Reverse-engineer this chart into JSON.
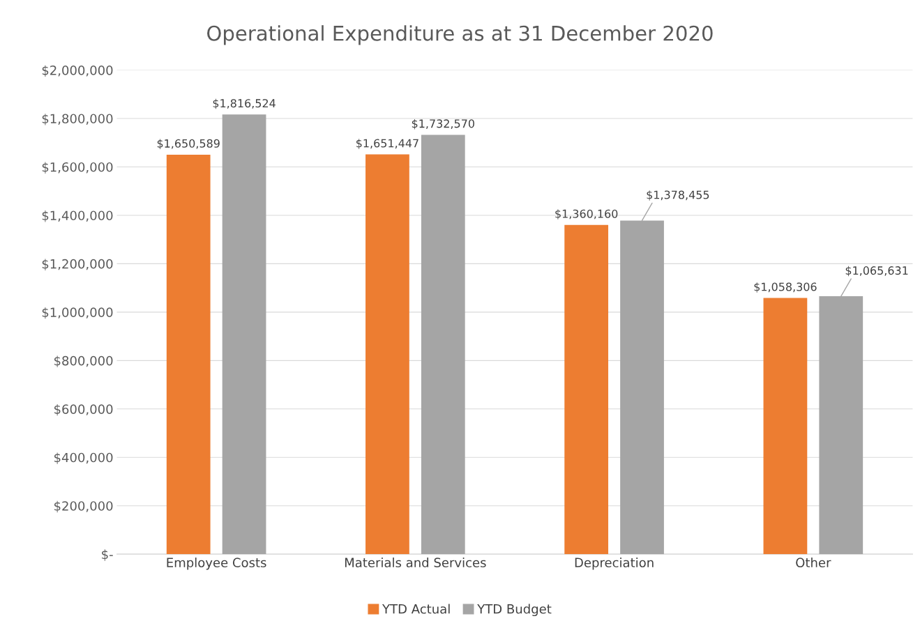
{
  "chart_data": {
    "type": "bar",
    "title": "Operational Expenditure as at 31 December 2020",
    "categories": [
      "Employee Costs",
      "Materials and Services",
      "Depreciation",
      "Other"
    ],
    "series": [
      {
        "name": "YTD Actual",
        "color": "#ed7d31",
        "values": [
          1650589,
          1651447,
          1360160,
          1058306
        ],
        "value_labels": [
          "$1,650,589",
          "$1,651,447",
          "$1,360,160",
          "$1,058,306"
        ]
      },
      {
        "name": "YTD Budget",
        "color": "#a5a5a5",
        "values": [
          1816524,
          1732570,
          1378455,
          1065631
        ],
        "value_labels": [
          "$1,816,524",
          "$1,732,570",
          "$1,378,455",
          "$1,065,631"
        ]
      }
    ],
    "ylim": [
      0,
      2000000
    ],
    "yticks": [
      {
        "value": 0,
        "label": "$-"
      },
      {
        "value": 200000,
        "label": "$200,000"
      },
      {
        "value": 400000,
        "label": "$400,000"
      },
      {
        "value": 600000,
        "label": "$600,000"
      },
      {
        "value": 800000,
        "label": "$800,000"
      },
      {
        "value": 1000000,
        "label": "$1,000,000"
      },
      {
        "value": 1200000,
        "label": "$1,200,000"
      },
      {
        "value": 1400000,
        "label": "$1,400,000"
      },
      {
        "value": 1600000,
        "label": "$1,600,000"
      },
      {
        "value": 1800000,
        "label": "$1,800,000"
      },
      {
        "value": 2000000,
        "label": "$2,000,000"
      }
    ],
    "grid": "y",
    "legend": "bottom"
  }
}
